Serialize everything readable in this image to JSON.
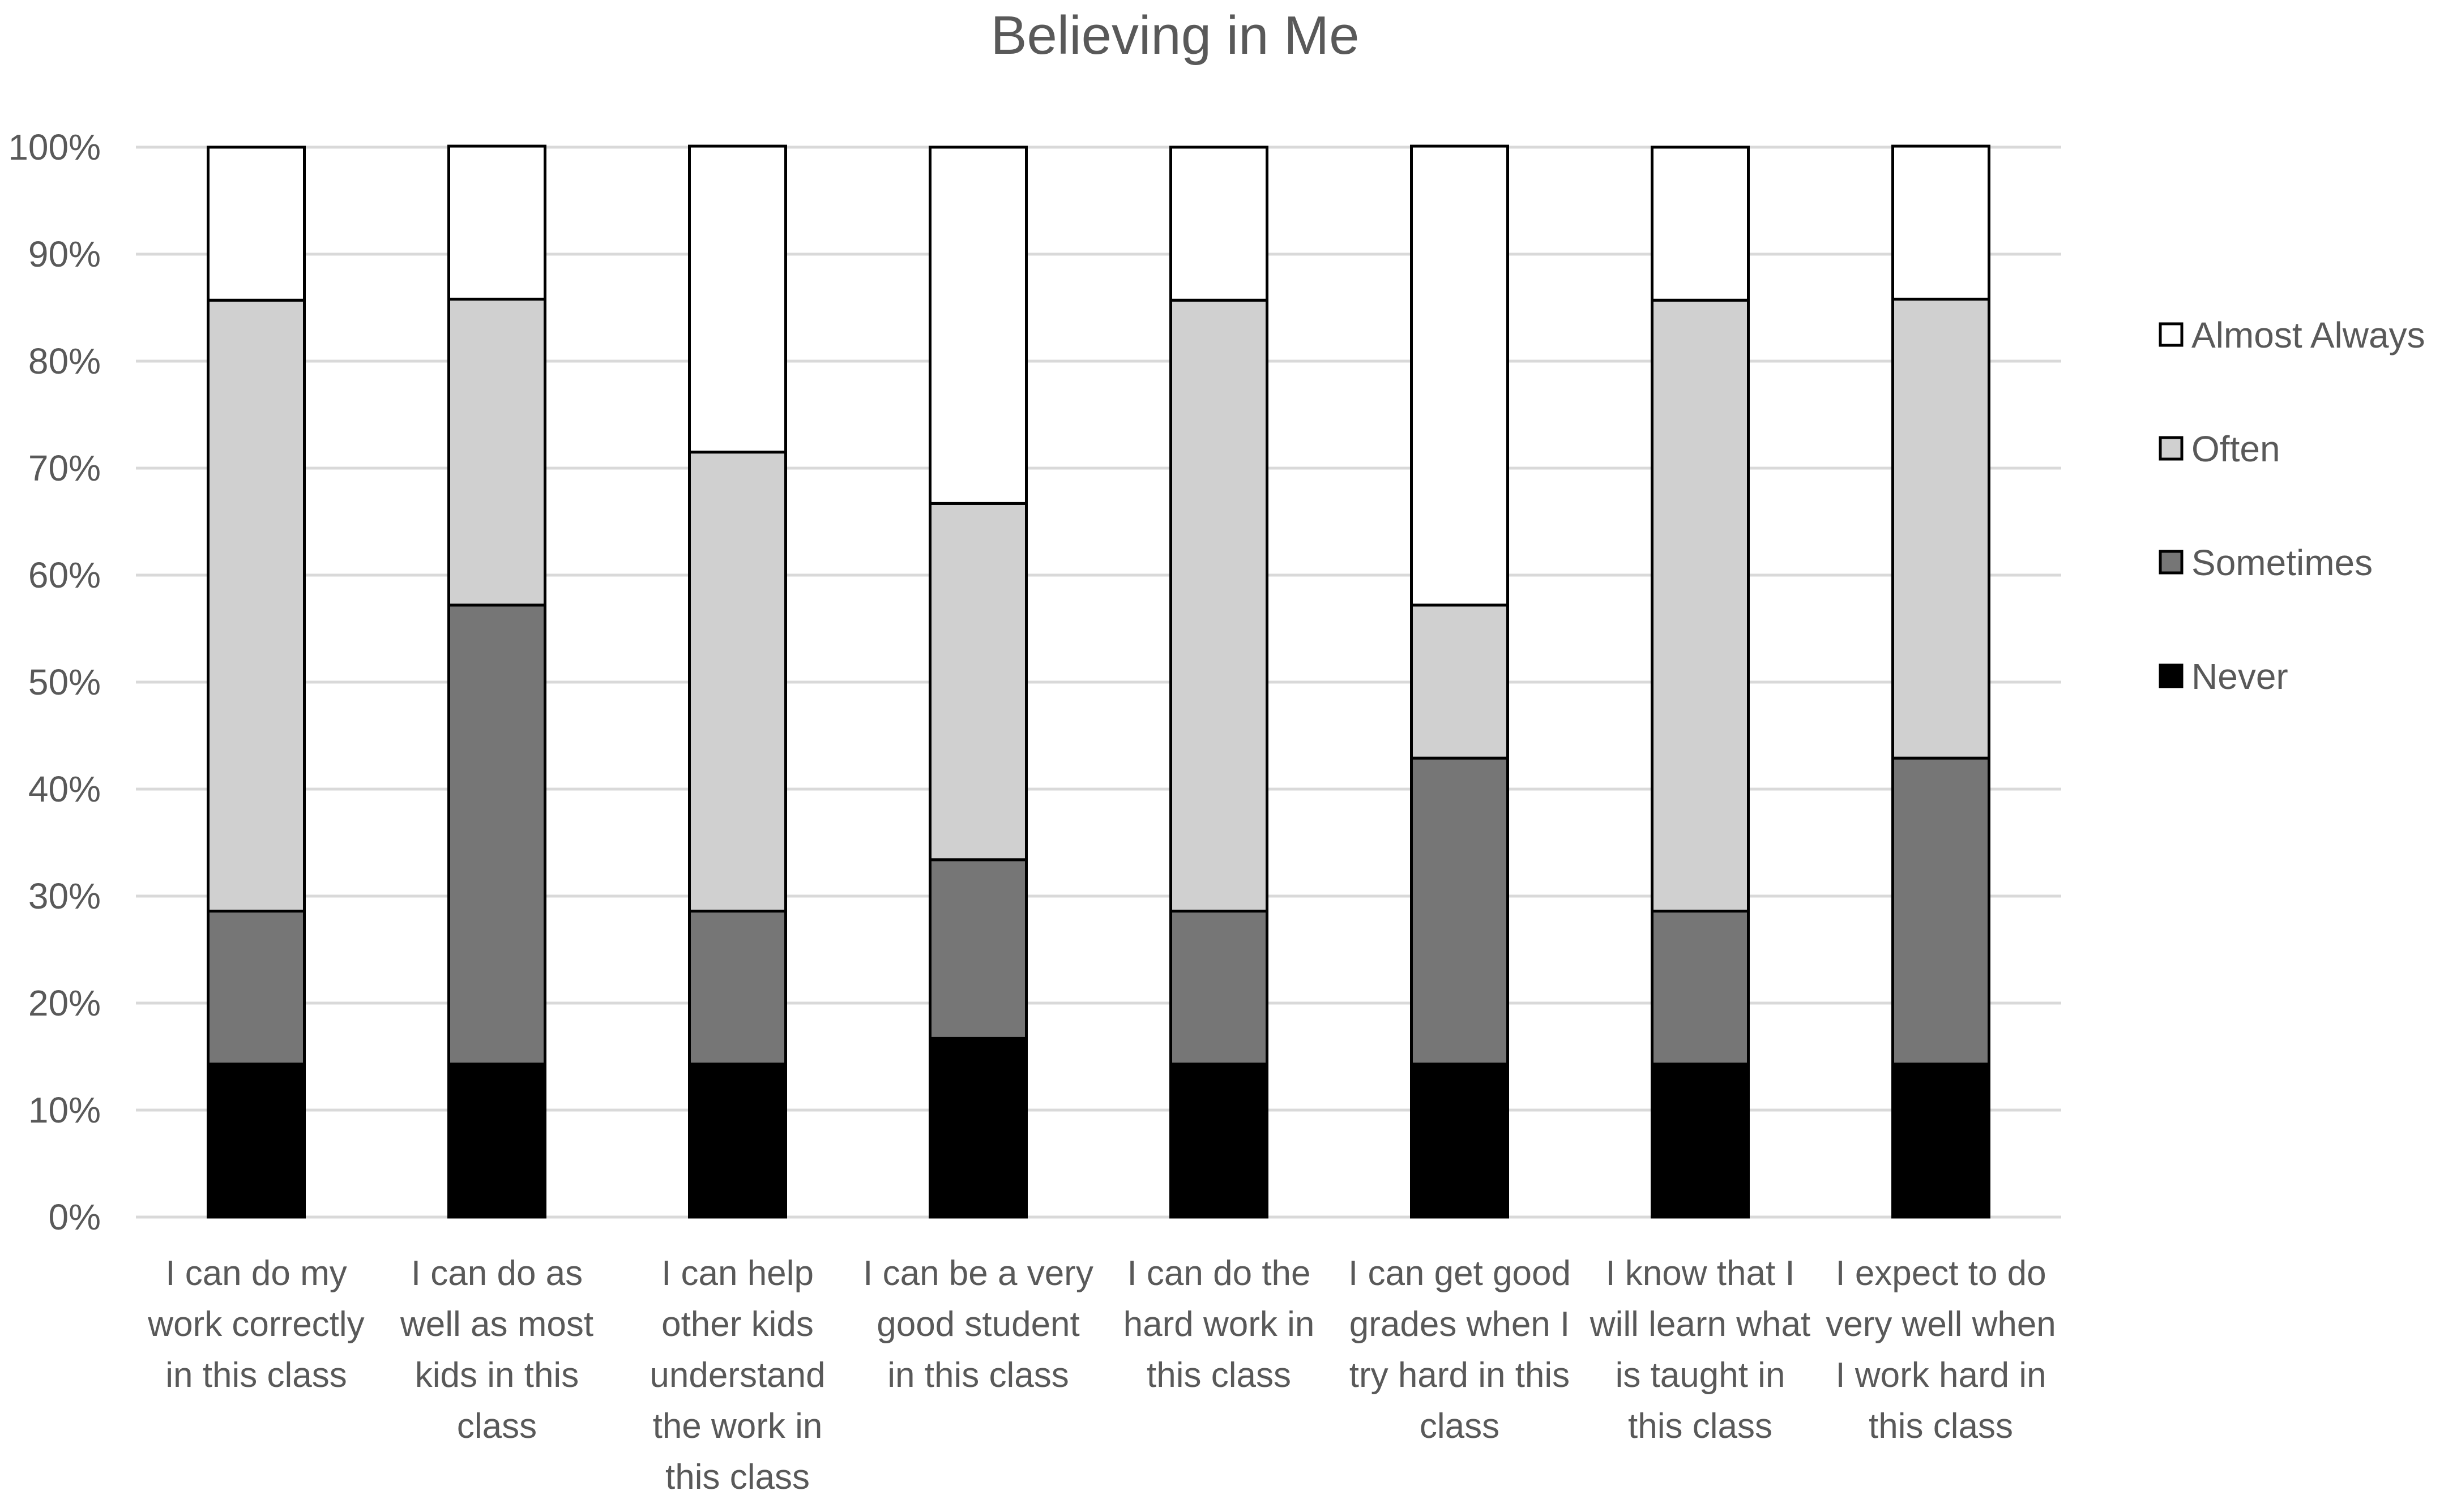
{
  "chart_data": {
    "type": "bar",
    "stacked": true,
    "percent": true,
    "title": "Believing in Me",
    "xlabel": "",
    "ylabel": "",
    "ylim": [
      0,
      100
    ],
    "yticks": [
      "0%",
      "10%",
      "20%",
      "30%",
      "40%",
      "50%",
      "60%",
      "70%",
      "80%",
      "90%",
      "100%"
    ],
    "categories": [
      [
        "I can do my",
        "work correctly",
        "in this class"
      ],
      [
        "I can do as",
        "well as most",
        "kids in this",
        "class"
      ],
      [
        "I can help",
        "other kids",
        "understand",
        "the work in",
        "this class"
      ],
      [
        "I can be a very",
        "good student",
        "in this class"
      ],
      [
        "I can do the",
        "hard work in",
        "this class"
      ],
      [
        "I can get good",
        "grades when I",
        "try hard in this",
        "class"
      ],
      [
        "I know that I",
        "will learn what",
        "is taught in",
        "this class"
      ],
      [
        "I expect to do",
        "very well when",
        "I work hard in",
        "this class"
      ]
    ],
    "series": [
      {
        "name": "Never",
        "color": "#000000",
        "values": [
          14.3,
          14.3,
          14.3,
          16.7,
          14.3,
          14.3,
          14.3,
          14.3
        ]
      },
      {
        "name": "Sometimes",
        "color": "#767676",
        "values": [
          14.3,
          42.9,
          14.3,
          16.7,
          14.3,
          28.6,
          14.3,
          28.6
        ]
      },
      {
        "name": "Often",
        "color": "#d0d0d0",
        "values": [
          57.1,
          28.6,
          42.9,
          33.3,
          57.1,
          14.3,
          57.1,
          42.9
        ]
      },
      {
        "name": "Almost Always",
        "color": "#ffffff",
        "values": [
          14.3,
          14.3,
          28.6,
          33.3,
          14.3,
          42.9,
          14.3,
          14.3
        ]
      }
    ],
    "legend_position": "right",
    "grid": true
  }
}
